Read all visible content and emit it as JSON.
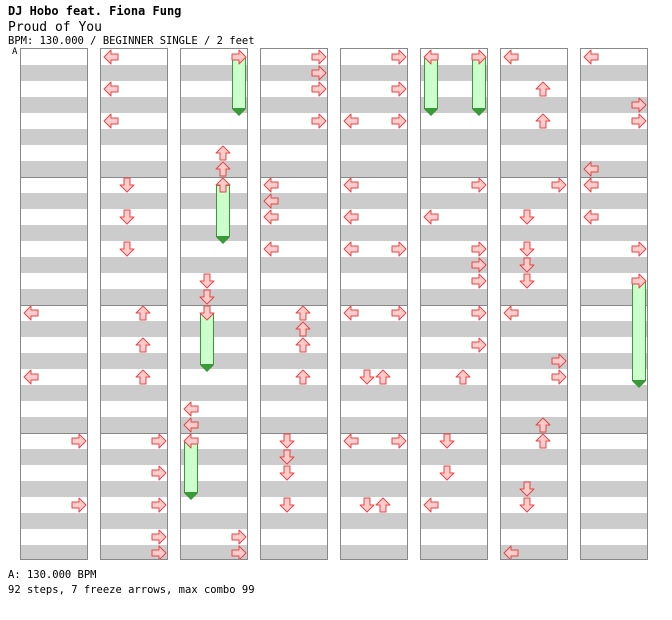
{
  "header": {
    "artist": "DJ Hobo feat. Fiona Fung",
    "title": "Proud of You",
    "info": "BPM: 130.000 / BEGINNER SINGLE / 2 feet",
    "marker": "A"
  },
  "footer": {
    "bpm_line": "A: 130.000 BPM",
    "stats_line": "92 steps, 7 freeze arrows, max combo 99"
  },
  "colors": {
    "arrow_fill": "#ffcccc",
    "arrow_stroke": "#e64545",
    "freeze_fill": "#ccffcc",
    "freeze_stroke": "#3a9a3a",
    "stripe": "#cccccc",
    "bar_line": "#888888"
  },
  "chart_data": {
    "type": "table",
    "columns_per_chart": 8,
    "measures_per_column": 4,
    "rows_per_measure": 4,
    "notes": [
      {
        "c": 1,
        "r": 0,
        "d": "L"
      },
      {
        "c": 1,
        "r": 2,
        "d": "L"
      },
      {
        "c": 1,
        "r": 4,
        "d": "L"
      },
      {
        "c": 1,
        "r": 8,
        "d": "D"
      },
      {
        "c": 1,
        "r": 10,
        "d": "D"
      },
      {
        "c": 1,
        "r": 12,
        "d": "D"
      },
      {
        "c": 1,
        "r": 16,
        "d": "U"
      },
      {
        "c": 1,
        "r": 18,
        "d": "U"
      },
      {
        "c": 1,
        "r": 20,
        "d": "U"
      },
      {
        "c": 1,
        "r": 24,
        "d": "R"
      },
      {
        "c": 1,
        "r": 26,
        "d": "R"
      },
      {
        "c": 1,
        "r": 28,
        "d": "R"
      },
      {
        "c": 1,
        "r": 30,
        "d": "R"
      },
      {
        "c": 1,
        "r": 31,
        "d": "R"
      },
      {
        "c": 0,
        "r": 16,
        "d": "L"
      },
      {
        "c": 0,
        "r": 20,
        "d": "L"
      },
      {
        "c": 0,
        "r": 24,
        "d": "R"
      },
      {
        "c": 0,
        "r": 28,
        "d": "R"
      },
      {
        "c": 2,
        "r": 0,
        "d": "R"
      },
      {
        "c": 2,
        "r": 6,
        "d": "U"
      },
      {
        "c": 2,
        "r": 7,
        "d": "U"
      },
      {
        "c": 2,
        "r": 8,
        "d": "U"
      },
      {
        "c": 2,
        "r": 14,
        "d": "D"
      },
      {
        "c": 2,
        "r": 15,
        "d": "D"
      },
      {
        "c": 2,
        "r": 16,
        "d": "D"
      },
      {
        "c": 2,
        "r": 22,
        "d": "L"
      },
      {
        "c": 2,
        "r": 23,
        "d": "L"
      },
      {
        "c": 2,
        "r": 24,
        "d": "L"
      },
      {
        "c": 2,
        "r": 30,
        "d": "R"
      },
      {
        "c": 2,
        "r": 31,
        "d": "R"
      },
      {
        "c": 3,
        "r": 0,
        "d": "R"
      },
      {
        "c": 3,
        "r": 1,
        "d": "R"
      },
      {
        "c": 3,
        "r": 2,
        "d": "R"
      },
      {
        "c": 3,
        "r": 4,
        "d": "R"
      },
      {
        "c": 3,
        "r": 8,
        "d": "L"
      },
      {
        "c": 3,
        "r": 9,
        "d": "L"
      },
      {
        "c": 3,
        "r": 10,
        "d": "L"
      },
      {
        "c": 3,
        "r": 12,
        "d": "L"
      },
      {
        "c": 3,
        "r": 16,
        "d": "U"
      },
      {
        "c": 3,
        "r": 17,
        "d": "U"
      },
      {
        "c": 3,
        "r": 18,
        "d": "U"
      },
      {
        "c": 3,
        "r": 20,
        "d": "U"
      },
      {
        "c": 3,
        "r": 24,
        "d": "D"
      },
      {
        "c": 3,
        "r": 25,
        "d": "D"
      },
      {
        "c": 3,
        "r": 26,
        "d": "D"
      },
      {
        "c": 3,
        "r": 28,
        "d": "D"
      },
      {
        "c": 4,
        "r": 0,
        "d": "R"
      },
      {
        "c": 4,
        "r": 2,
        "d": "R"
      },
      {
        "c": 4,
        "r": 4,
        "d": "L"
      },
      {
        "c": 4,
        "r": 4,
        "d": "R",
        "x": 1
      },
      {
        "c": 4,
        "r": 8,
        "d": "L"
      },
      {
        "c": 4,
        "r": 10,
        "d": "L"
      },
      {
        "c": 4,
        "r": 12,
        "d": "L"
      },
      {
        "c": 4,
        "r": 12,
        "d": "R",
        "x": 1
      },
      {
        "c": 4,
        "r": 16,
        "d": "L"
      },
      {
        "c": 4,
        "r": 16,
        "d": "R",
        "x": 1
      },
      {
        "c": 4,
        "r": 20,
        "d": "D"
      },
      {
        "c": 4,
        "r": 20,
        "d": "U",
        "x": 1
      },
      {
        "c": 4,
        "r": 24,
        "d": "L"
      },
      {
        "c": 4,
        "r": 24,
        "d": "R",
        "x": 1
      },
      {
        "c": 4,
        "r": 28,
        "d": "D"
      },
      {
        "c": 4,
        "r": 28,
        "d": "U",
        "x": 1
      },
      {
        "c": 5,
        "r": 0,
        "d": "L"
      },
      {
        "c": 5,
        "r": 0,
        "d": "R",
        "x": 1
      },
      {
        "c": 5,
        "r": 8,
        "d": "R",
        "x": 1
      },
      {
        "c": 5,
        "r": 10,
        "d": "L"
      },
      {
        "c": 5,
        "r": 12,
        "d": "R",
        "x": 1
      },
      {
        "c": 5,
        "r": 13,
        "d": "R",
        "x": 1
      },
      {
        "c": 5,
        "r": 14,
        "d": "R",
        "x": 1
      },
      {
        "c": 5,
        "r": 16,
        "d": "R",
        "x": 1
      },
      {
        "c": 5,
        "r": 18,
        "d": "R",
        "x": 1
      },
      {
        "c": 5,
        "r": 20,
        "d": "U"
      },
      {
        "c": 5,
        "r": 24,
        "d": "D"
      },
      {
        "c": 5,
        "r": 26,
        "d": "D"
      },
      {
        "c": 5,
        "r": 28,
        "d": "L"
      },
      {
        "c": 6,
        "r": 0,
        "d": "L"
      },
      {
        "c": 6,
        "r": 2,
        "d": "U"
      },
      {
        "c": 6,
        "r": 4,
        "d": "U"
      },
      {
        "c": 6,
        "r": 8,
        "d": "R"
      },
      {
        "c": 6,
        "r": 10,
        "d": "D"
      },
      {
        "c": 6,
        "r": 12,
        "d": "D"
      },
      {
        "c": 6,
        "r": 13,
        "d": "D"
      },
      {
        "c": 6,
        "r": 14,
        "d": "D"
      },
      {
        "c": 6,
        "r": 16,
        "d": "L"
      },
      {
        "c": 6,
        "r": 19,
        "d": "R"
      },
      {
        "c": 6,
        "r": 20,
        "d": "R"
      },
      {
        "c": 6,
        "r": 23,
        "d": "U"
      },
      {
        "c": 6,
        "r": 24,
        "d": "U"
      },
      {
        "c": 6,
        "r": 27,
        "d": "D"
      },
      {
        "c": 6,
        "r": 28,
        "d": "D"
      },
      {
        "c": 6,
        "r": 31,
        "d": "L"
      },
      {
        "c": 7,
        "r": 0,
        "d": "L"
      },
      {
        "c": 7,
        "r": 3,
        "d": "R"
      },
      {
        "c": 7,
        "r": 4,
        "d": "R"
      },
      {
        "c": 7,
        "r": 7,
        "d": "L"
      },
      {
        "c": 7,
        "r": 8,
        "d": "L"
      },
      {
        "c": 7,
        "r": 10,
        "d": "L"
      },
      {
        "c": 7,
        "r": 12,
        "d": "R"
      },
      {
        "c": 7,
        "r": 14,
        "d": "R"
      }
    ],
    "freezes": [
      {
        "c": 2,
        "d": "R",
        "r0": 0,
        "r1": 3
      },
      {
        "c": 2,
        "d": "U",
        "r0": 8,
        "r1": 11
      },
      {
        "c": 2,
        "d": "D",
        "r0": 16,
        "r1": 19
      },
      {
        "c": 2,
        "d": "L",
        "r0": 24,
        "r1": 27
      },
      {
        "c": 5,
        "d": "L",
        "r0": 0,
        "r1": 3
      },
      {
        "c": 5,
        "d": "R",
        "r0": 0,
        "r1": 3
      },
      {
        "c": 7,
        "d": "R",
        "r0": 14,
        "r1": 20
      }
    ]
  }
}
